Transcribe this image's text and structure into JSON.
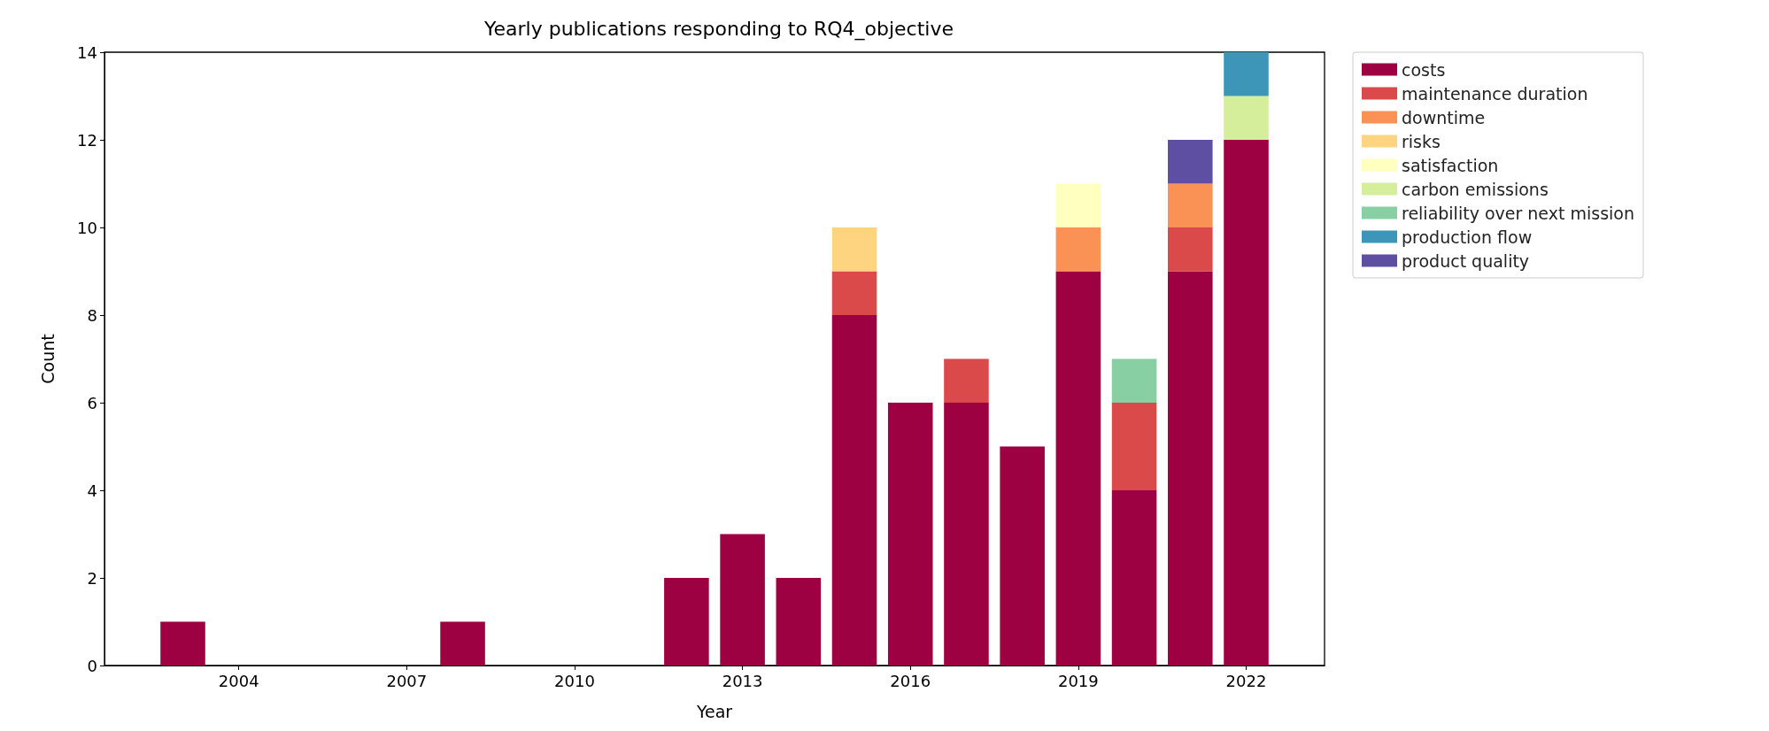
{
  "chart_data": {
    "type": "bar",
    "stacked": true,
    "title": "Yearly publications responding to RQ4_objective",
    "xlabel": "Year",
    "ylabel": "Count",
    "x": [
      2003,
      2008,
      2012,
      2013,
      2014,
      2015,
      2016,
      2017,
      2018,
      2019,
      2020,
      2021,
      2022
    ],
    "series": [
      {
        "name": "costs",
        "color": "#9e0142",
        "values": [
          1,
          1,
          2,
          3,
          2,
          8,
          6,
          6,
          5,
          9,
          4,
          9,
          12
        ]
      },
      {
        "name": "maintenance duration",
        "color": "#db4a4b",
        "values": [
          null,
          null,
          null,
          null,
          null,
          1,
          null,
          1,
          null,
          null,
          2,
          1,
          null
        ]
      },
      {
        "name": "downtime",
        "color": "#f99254",
        "values": [
          null,
          null,
          null,
          null,
          null,
          null,
          null,
          null,
          null,
          1,
          null,
          1,
          null
        ]
      },
      {
        "name": "risks",
        "color": "#fed481",
        "values": [
          null,
          null,
          null,
          null,
          null,
          1,
          null,
          null,
          null,
          null,
          null,
          null,
          null
        ]
      },
      {
        "name": "satisfaction",
        "color": "#ffffbf",
        "values": [
          null,
          null,
          null,
          null,
          null,
          null,
          null,
          null,
          null,
          1,
          null,
          null,
          null
        ]
      },
      {
        "name": "carbon emissions",
        "color": "#d5ee9b",
        "values": [
          null,
          null,
          null,
          null,
          null,
          null,
          null,
          null,
          null,
          null,
          null,
          null,
          1
        ]
      },
      {
        "name": "reliability over next mission",
        "color": "#88cfa4",
        "values": [
          null,
          null,
          null,
          null,
          null,
          null,
          null,
          null,
          null,
          null,
          1,
          null,
          null
        ]
      },
      {
        "name": "production flow",
        "color": "#3d95b8",
        "values": [
          null,
          null,
          null,
          null,
          null,
          null,
          null,
          null,
          null,
          null,
          null,
          null,
          1
        ]
      },
      {
        "name": "product quality",
        "color": "#5e4fa2",
        "values": [
          null,
          null,
          null,
          null,
          null,
          null,
          null,
          null,
          null,
          null,
          null,
          1,
          null
        ]
      }
    ],
    "xlim": [
      2001.6,
      2023.4
    ],
    "xticks": [
      2004,
      2007,
      2010,
      2013,
      2016,
      2019,
      2022
    ],
    "ylim": [
      0,
      14
    ],
    "yticks": [
      0,
      2,
      4,
      6,
      8,
      10,
      12,
      14
    ],
    "grid": false,
    "legend": "right"
  }
}
